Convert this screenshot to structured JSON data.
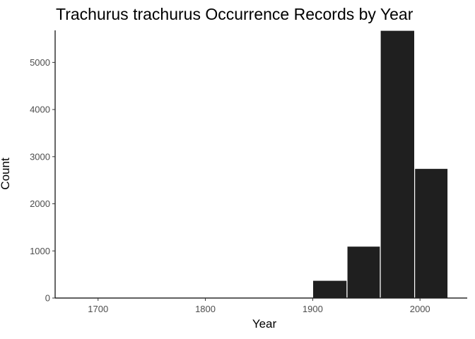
{
  "chart_data": {
    "type": "bar",
    "title": "Trachurus trachurus Occurrence Records by Year",
    "xlabel": "Year",
    "ylabel": "Count",
    "xlim": [
      1660,
      2044
    ],
    "ylim": [
      0,
      5680
    ],
    "x_ticks": [
      1700,
      1800,
      1900,
      2000
    ],
    "y_ticks": [
      0,
      1000,
      2000,
      3000,
      4000,
      5000
    ],
    "bins": [
      {
        "start": 1660,
        "end": 1900,
        "value": 0
      },
      {
        "start": 1900,
        "end": 1932,
        "value": 375
      },
      {
        "start": 1932,
        "end": 1963,
        "value": 1100
      },
      {
        "start": 1963,
        "end": 1995,
        "value": 5680
      },
      {
        "start": 1995,
        "end": 2026,
        "value": 2750
      }
    ],
    "colors": {
      "bar_fill": "#1f1f1f",
      "bar_stroke": "#ffffff",
      "axis": "#000000",
      "tick_label": "#4d4d4d"
    },
    "grid": false,
    "legend": "none"
  }
}
